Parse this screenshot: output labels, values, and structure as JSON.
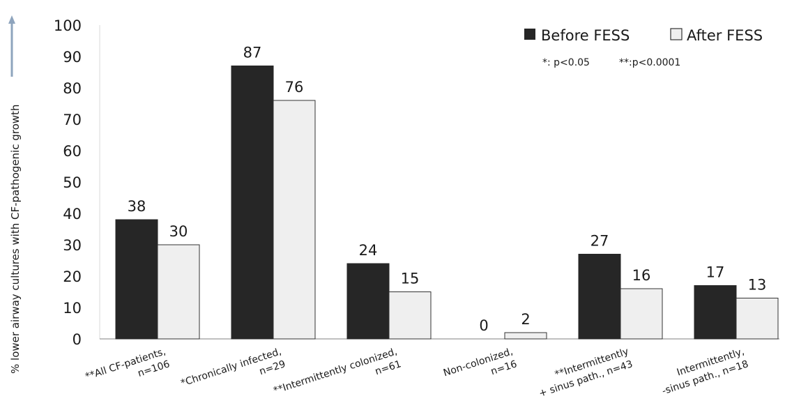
{
  "chart_data": {
    "type": "bar",
    "ylabel": "% lower airway cultures with CF-pathogenic growth",
    "xlabel": "",
    "ylim": [
      0,
      100
    ],
    "yticks": [
      "0",
      "10",
      "20",
      "30",
      "40",
      "50",
      "60",
      "70",
      "80",
      "90",
      "100"
    ],
    "grid": false,
    "legend_position": "top-right",
    "categories": [
      [
        "**All CF-patients,",
        "n=106"
      ],
      [
        "*Chronically infected,",
        "n=29"
      ],
      [
        "**Intermittently colonized,",
        "n=61"
      ],
      [
        "Non-colonized,",
        "n=16"
      ],
      [
        "**Intermittently",
        "+ sinus path., n=43"
      ],
      [
        "Intermittently,",
        "-sinus path., n=18"
      ]
    ],
    "series": [
      {
        "name": "Before FESS",
        "values": [
          38,
          87,
          24,
          0,
          27,
          17
        ],
        "color": "#262626",
        "stroke": "#262626"
      },
      {
        "name": "After FESS",
        "values": [
          30,
          76,
          15,
          2,
          16,
          13
        ],
        "color": "#efefef",
        "stroke": "#333333"
      }
    ],
    "data_labels": [
      [
        "38",
        "30"
      ],
      [
        "87",
        "76"
      ],
      [
        "24",
        "15"
      ],
      [
        "0",
        "2"
      ],
      [
        "27",
        "16"
      ],
      [
        "17",
        "13"
      ]
    ],
    "annotation": {
      "p1": "*: p<0.05",
      "p2": "**:p<0.0001"
    },
    "legend": {
      "before_marker": "■",
      "after_marker": "□"
    }
  }
}
